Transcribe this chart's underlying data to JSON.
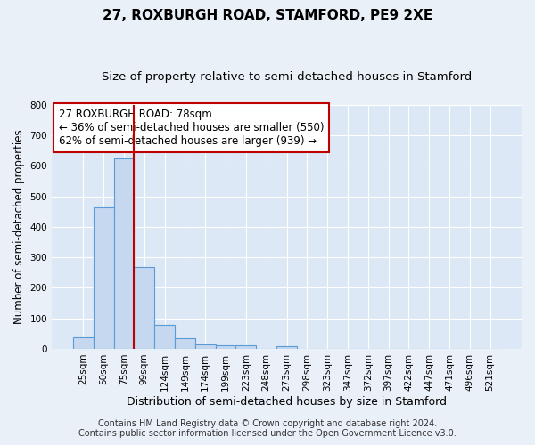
{
  "title": "27, ROXBURGH ROAD, STAMFORD, PE9 2XE",
  "subtitle": "Size of property relative to semi-detached houses in Stamford",
  "xlabel": "Distribution of semi-detached houses by size in Stamford",
  "ylabel": "Number of semi-detached properties",
  "footer_line1": "Contains HM Land Registry data © Crown copyright and database right 2024.",
  "footer_line2": "Contains public sector information licensed under the Open Government Licence v3.0.",
  "bin_labels": [
    "25sqm",
    "50sqm",
    "75sqm",
    "99sqm",
    "124sqm",
    "149sqm",
    "174sqm",
    "199sqm",
    "223sqm",
    "248sqm",
    "273sqm",
    "298sqm",
    "323sqm",
    "347sqm",
    "372sqm",
    "397sqm",
    "422sqm",
    "447sqm",
    "471sqm",
    "496sqm",
    "521sqm"
  ],
  "bar_values": [
    38,
    465,
    625,
    268,
    80,
    35,
    15,
    13,
    13,
    0,
    10,
    0,
    0,
    0,
    0,
    0,
    0,
    0,
    0,
    0,
    0
  ],
  "bar_color": "#c5d8f0",
  "bar_edgecolor": "#5b9bd5",
  "vline_x": 2.5,
  "vline_color": "#c00000",
  "annotation_line1": "27 ROXBURGH ROAD: 78sqm",
  "annotation_line2": "← 36% of semi-detached houses are smaller (550)",
  "annotation_line3": "62% of semi-detached houses are larger (939) →",
  "annotation_box_color": "white",
  "annotation_box_edgecolor": "#c00000",
  "ylim": [
    0,
    800
  ],
  "background_color": "#eaf0f8",
  "plot_background_color": "#dce8f5",
  "grid_color": "white",
  "title_fontsize": 11,
  "subtitle_fontsize": 9.5,
  "xlabel_fontsize": 9,
  "ylabel_fontsize": 8.5,
  "tick_fontsize": 7.5,
  "annotation_fontsize": 8.5,
  "footer_fontsize": 7
}
